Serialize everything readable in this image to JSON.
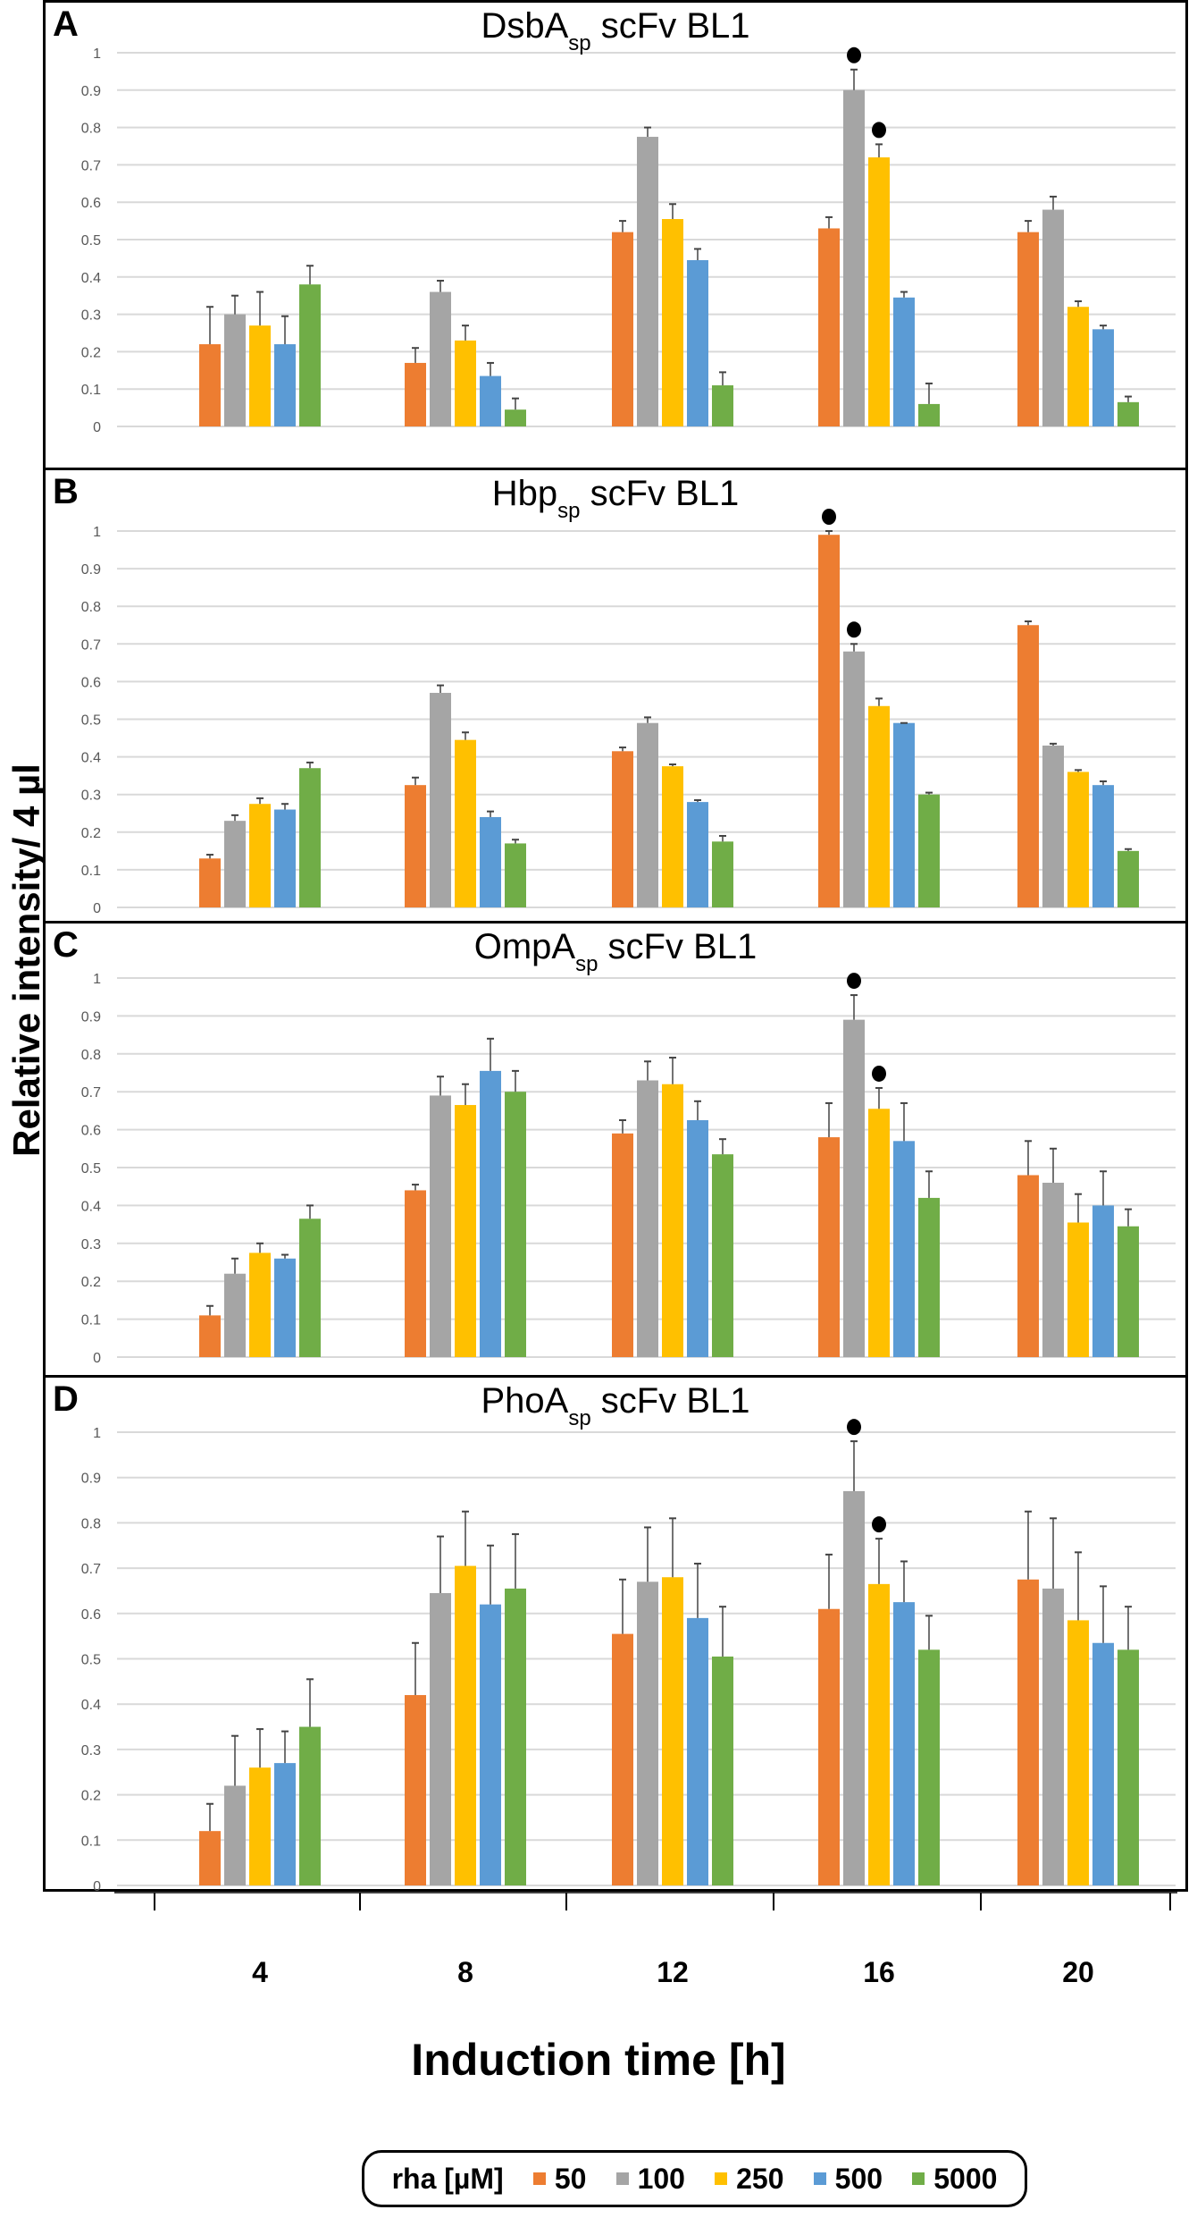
{
  "chart_data": {
    "type": "bar",
    "ylabel": "Relative intensity/ 4 µl",
    "xlabel": "Induction time [h]",
    "categories": [
      "4",
      "8",
      "12",
      "16",
      "20"
    ],
    "ylim": [
      0,
      1
    ],
    "y_ticks": [
      "0",
      "0.1",
      "0.2",
      "0.3",
      "0.4",
      "0.5",
      "0.6",
      "0.7",
      "0.8",
      "0.9",
      "1"
    ],
    "grid": true,
    "legend": {
      "title": "rha [µM]",
      "placement": "bottom",
      "entries": [
        "50",
        "100",
        "250",
        "500",
        "5000"
      ]
    },
    "colors": [
      "#ED7D31",
      "#A5A5A5",
      "#FFC000",
      "#5B9BD5",
      "#70AD47"
    ],
    "panels": [
      {
        "letter": "A",
        "title_main": "DsbA",
        "title_sub": "sp",
        "title_rest": " scFv BL1",
        "series": [
          {
            "name": "50",
            "values": [
              0.22,
              0.17,
              0.52,
              0.53,
              0.52
            ],
            "err_top": [
              0.32,
              0.21,
              0.55,
              0.56,
              0.55
            ]
          },
          {
            "name": "100",
            "values": [
              0.3,
              0.36,
              0.775,
              0.9,
              0.58
            ],
            "err_top": [
              0.35,
              0.39,
              0.8,
              0.955,
              0.615
            ]
          },
          {
            "name": "250",
            "values": [
              0.27,
              0.23,
              0.555,
              0.72,
              0.32
            ],
            "err_top": [
              0.36,
              0.27,
              0.595,
              0.755,
              0.335
            ]
          },
          {
            "name": "500",
            "values": [
              0.22,
              0.135,
              0.445,
              0.345,
              0.26
            ],
            "err_top": [
              0.295,
              0.17,
              0.475,
              0.36,
              0.27
            ]
          },
          {
            "name": "5000",
            "values": [
              0.38,
              0.045,
              0.11,
              0.06,
              0.065
            ],
            "err_top": [
              0.43,
              0.075,
              0.145,
              0.115,
              0.08
            ]
          }
        ],
        "markers": [
          {
            "category": "16",
            "series": "100"
          },
          {
            "category": "16",
            "series": "250"
          }
        ]
      },
      {
        "letter": "B",
        "title_main": "Hbp",
        "title_sub": "sp",
        "title_rest": " scFv BL1",
        "series": [
          {
            "name": "50",
            "values": [
              0.13,
              0.325,
              0.415,
              0.99,
              0.75
            ],
            "err_top": [
              0.14,
              0.345,
              0.425,
              1.0,
              0.76
            ]
          },
          {
            "name": "100",
            "values": [
              0.23,
              0.57,
              0.49,
              0.68,
              0.43
            ],
            "err_top": [
              0.245,
              0.59,
              0.505,
              0.7,
              0.435
            ]
          },
          {
            "name": "250",
            "values": [
              0.275,
              0.445,
              0.375,
              0.535,
              0.36
            ],
            "err_top": [
              0.29,
              0.465,
              0.38,
              0.555,
              0.365
            ]
          },
          {
            "name": "500",
            "values": [
              0.26,
              0.24,
              0.28,
              0.49,
              0.325
            ],
            "err_top": [
              0.275,
              0.255,
              0.285,
              0.49,
              0.335
            ]
          },
          {
            "name": "5000",
            "values": [
              0.37,
              0.17,
              0.175,
              0.3,
              0.15
            ],
            "err_top": [
              0.385,
              0.18,
              0.19,
              0.305,
              0.155
            ]
          }
        ],
        "markers": [
          {
            "category": "16",
            "series": "50"
          },
          {
            "category": "16",
            "series": "100"
          }
        ]
      },
      {
        "letter": "C",
        "title_main": "OmpA",
        "title_sub": "sp",
        "title_rest": " scFv BL1",
        "series": [
          {
            "name": "50",
            "values": [
              0.11,
              0.44,
              0.59,
              0.58,
              0.48
            ],
            "err_top": [
              0.135,
              0.455,
              0.625,
              0.67,
              0.57
            ]
          },
          {
            "name": "100",
            "values": [
              0.22,
              0.69,
              0.73,
              0.89,
              0.46
            ],
            "err_top": [
              0.26,
              0.74,
              0.78,
              0.955,
              0.55
            ]
          },
          {
            "name": "250",
            "values": [
              0.275,
              0.665,
              0.72,
              0.655,
              0.355
            ],
            "err_top": [
              0.3,
              0.72,
              0.79,
              0.71,
              0.43
            ]
          },
          {
            "name": "500",
            "values": [
              0.26,
              0.755,
              0.625,
              0.57,
              0.4
            ],
            "err_top": [
              0.27,
              0.84,
              0.675,
              0.67,
              0.49
            ]
          },
          {
            "name": "5000",
            "values": [
              0.365,
              0.7,
              0.535,
              0.42,
              0.345
            ],
            "err_top": [
              0.4,
              0.755,
              0.575,
              0.49,
              0.39
            ]
          }
        ],
        "markers": [
          {
            "category": "16",
            "series": "100"
          },
          {
            "category": "16",
            "series": "250"
          }
        ]
      },
      {
        "letter": "D",
        "title_main": "PhoA",
        "title_sub": "sp",
        "title_rest": " scFv BL1",
        "series": [
          {
            "name": "50",
            "values": [
              0.12,
              0.42,
              0.555,
              0.61,
              0.675
            ],
            "err_top": [
              0.18,
              0.535,
              0.675,
              0.73,
              0.825
            ]
          },
          {
            "name": "100",
            "values": [
              0.22,
              0.645,
              0.67,
              0.87,
              0.655
            ],
            "err_top": [
              0.33,
              0.77,
              0.79,
              0.98,
              0.81
            ]
          },
          {
            "name": "250",
            "values": [
              0.26,
              0.705,
              0.68,
              0.665,
              0.585
            ],
            "err_top": [
              0.345,
              0.825,
              0.81,
              0.765,
              0.735
            ]
          },
          {
            "name": "500",
            "values": [
              0.27,
              0.62,
              0.59,
              0.625,
              0.535
            ],
            "err_top": [
              0.34,
              0.75,
              0.71,
              0.715,
              0.66
            ]
          },
          {
            "name": "5000",
            "values": [
              0.35,
              0.655,
              0.505,
              0.52,
              0.52
            ],
            "err_top": [
              0.455,
              0.775,
              0.615,
              0.595,
              0.615
            ]
          }
        ],
        "markers": [
          {
            "category": "16",
            "series": "100"
          },
          {
            "category": "16",
            "series": "250"
          }
        ]
      }
    ]
  }
}
